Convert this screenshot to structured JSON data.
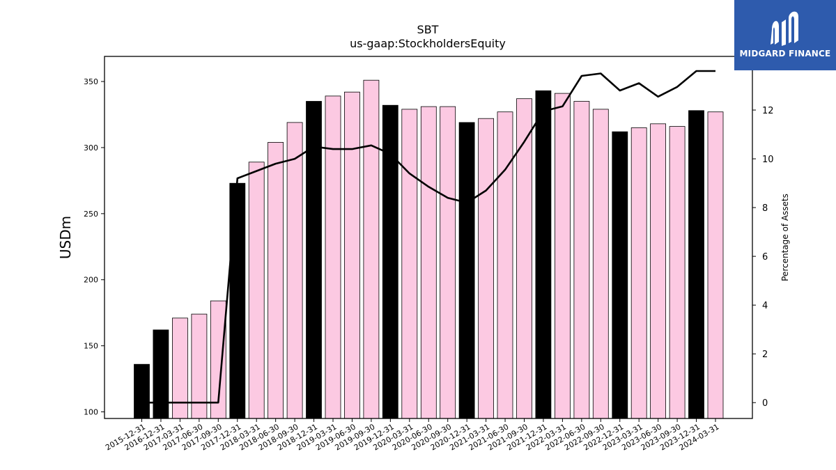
{
  "chart_data": {
    "type": "bar",
    "title": "SBT",
    "subtitle": "us-gaap:StockholdersEquity",
    "ylabel": "USDm",
    "y2label": "Percentage of Assets",
    "ylim": [
      95,
      369
    ],
    "y2lim": [
      -0.65,
      14.2
    ],
    "yticks": [
      100,
      150,
      200,
      250,
      300,
      350
    ],
    "y2ticks": [
      0,
      2,
      4,
      6,
      8,
      10,
      12
    ],
    "categories": [
      "2015-12-31",
      "2016-12-31",
      "2017-03-31",
      "2017-06-30",
      "2017-09-30",
      "2017-12-31",
      "2018-03-31",
      "2018-06-30",
      "2018-09-30",
      "2018-12-31",
      "2019-03-31",
      "2019-06-30",
      "2019-09-30",
      "2019-12-31",
      "2020-03-31",
      "2020-06-30",
      "2020-09-30",
      "2020-12-31",
      "2021-03-31",
      "2021-06-30",
      "2021-09-30",
      "2021-12-31",
      "2022-03-31",
      "2022-06-30",
      "2022-09-30",
      "2022-12-31",
      "2023-03-31",
      "2023-06-30",
      "2023-09-30",
      "2023-12-31",
      "2024-03-31"
    ],
    "series": [
      {
        "kind": "bar",
        "values": [
          136,
          162,
          171,
          174,
          184,
          273,
          289,
          304,
          319,
          335,
          339,
          342,
          351,
          332,
          329,
          331,
          331,
          319,
          322,
          327,
          337,
          343,
          341,
          335,
          329,
          312,
          315,
          318,
          316,
          328,
          327
        ],
        "year_end": [
          true,
          true,
          false,
          false,
          false,
          true,
          false,
          false,
          false,
          true,
          false,
          false,
          false,
          true,
          false,
          false,
          false,
          true,
          false,
          false,
          false,
          true,
          false,
          false,
          false,
          true,
          false,
          false,
          false,
          true,
          false
        ]
      },
      {
        "kind": "line",
        "axis": "right",
        "values": [
          0.0,
          0.0,
          0.0,
          0.0,
          0.0,
          9.2,
          9.5,
          9.8,
          10.0,
          10.5,
          10.4,
          10.4,
          10.55,
          10.2,
          9.4,
          8.85,
          8.4,
          8.2,
          8.7,
          9.55,
          10.7,
          11.95,
          12.15,
          13.4,
          13.5,
          12.8,
          13.1,
          12.55,
          12.95,
          13.6,
          13.6
        ]
      }
    ],
    "colors": {
      "year_end_bar": "#000000",
      "quarter_bar": "#fcc9e2",
      "line": "#000000"
    },
    "grid": false,
    "legend": "none"
  },
  "logo": {
    "text": "MIDGARD FINANCE",
    "background": "#2e5bad"
  }
}
